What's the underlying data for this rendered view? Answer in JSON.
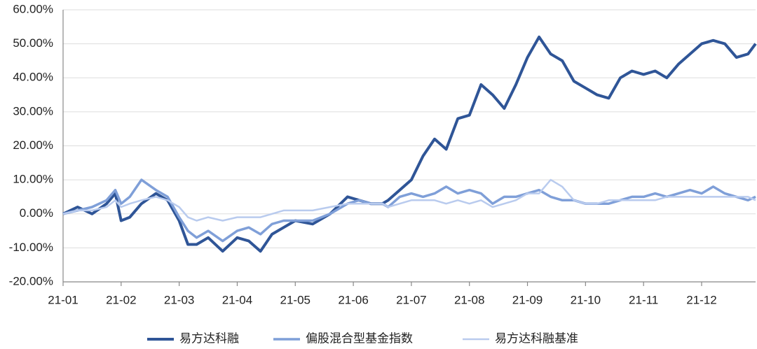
{
  "chart_data": {
    "type": "line",
    "x": [
      0,
      0.25,
      0.5,
      0.75,
      0.9,
      1.0,
      1.15,
      1.35,
      1.6,
      1.8,
      2.0,
      2.15,
      2.3,
      2.5,
      2.75,
      3.0,
      3.2,
      3.4,
      3.6,
      3.8,
      4.0,
      4.3,
      4.6,
      4.9,
      5.1,
      5.3,
      5.5,
      5.6,
      5.8,
      6.0,
      6.2,
      6.4,
      6.6,
      6.8,
      7.0,
      7.2,
      7.4,
      7.6,
      7.8,
      8.0,
      8.2,
      8.4,
      8.6,
      8.8,
      9.0,
      9.2,
      9.4,
      9.6,
      9.8,
      10.0,
      10.2,
      10.4,
      10.6,
      10.8,
      11.0,
      11.2,
      11.4,
      11.6,
      11.8,
      11.93
    ],
    "series": [
      {
        "name": "易方达科融",
        "color": "#2f5597",
        "width": 4,
        "values": [
          0,
          2,
          0,
          3,
          6,
          -2,
          -1,
          3,
          6,
          4,
          -2,
          -9,
          -9,
          -7,
          -11,
          -7,
          -8,
          -11,
          -6,
          -4,
          -2,
          -3,
          0,
          5,
          4,
          3,
          3,
          4,
          7,
          10,
          17,
          22,
          19,
          28,
          29,
          38,
          35,
          31,
          38,
          46,
          52,
          47,
          45,
          39,
          37,
          35,
          34,
          40,
          42,
          41,
          42,
          40,
          44,
          47,
          50,
          51,
          50,
          46,
          47,
          50
        ]
      },
      {
        "name": "偏股混合型基金指数",
        "color": "#7f9fd8",
        "width": 3.5,
        "values": [
          0,
          1,
          2,
          4,
          7,
          3,
          5,
          10,
          7,
          5,
          -1,
          -5,
          -7,
          -5,
          -8,
          -5,
          -4,
          -6,
          -3,
          -2,
          -2,
          -2,
          0,
          3,
          4,
          3,
          3,
          2,
          5,
          6,
          5,
          6,
          8,
          6,
          7,
          6,
          3,
          5,
          5,
          6,
          7,
          5,
          4,
          4,
          3,
          3,
          3,
          4,
          5,
          5,
          6,
          5,
          6,
          7,
          6,
          8,
          6,
          5,
          4,
          5
        ]
      },
      {
        "name": "易方达科融基准",
        "color": "#b9cbee",
        "width": 2.5,
        "values": [
          0,
          1,
          1,
          2,
          4,
          2,
          3,
          4,
          5,
          4,
          2,
          -1,
          -2,
          -1,
          -2,
          -1,
          -1,
          -1,
          0,
          1,
          1,
          1,
          2,
          3,
          3,
          3,
          3,
          2,
          3,
          4,
          4,
          4,
          3,
          4,
          3,
          4,
          2,
          3,
          4,
          6,
          6,
          10,
          8,
          4,
          3,
          3,
          4,
          4,
          4,
          4,
          4,
          5,
          5,
          5,
          5,
          5,
          5,
          5,
          5,
          4
        ]
      }
    ],
    "xlim": [
      0,
      11.93
    ],
    "xticks": [
      {
        "value": 0,
        "label": "21-01"
      },
      {
        "value": 1,
        "label": "21-02"
      },
      {
        "value": 2,
        "label": "21-03"
      },
      {
        "value": 3,
        "label": "21-04"
      },
      {
        "value": 4,
        "label": "21-05"
      },
      {
        "value": 5,
        "label": "21-06"
      },
      {
        "value": 6,
        "label": "21-07"
      },
      {
        "value": 7,
        "label": "21-08"
      },
      {
        "value": 8,
        "label": "21-09"
      },
      {
        "value": 9,
        "label": "21-10"
      },
      {
        "value": 10,
        "label": "21-11"
      },
      {
        "value": 11,
        "label": "21-12"
      }
    ],
    "ylim": [
      -20,
      60
    ],
    "yticks": [
      {
        "value": -20,
        "label": "-20.00%"
      },
      {
        "value": -10,
        "label": "-10.00%"
      },
      {
        "value": 0,
        "label": "0.00%"
      },
      {
        "value": 10,
        "label": "10.00%"
      },
      {
        "value": 20,
        "label": "20.00%"
      },
      {
        "value": 30,
        "label": "30.00%"
      },
      {
        "value": 40,
        "label": "40.00%"
      },
      {
        "value": 50,
        "label": "50.00%"
      },
      {
        "value": 60,
        "label": "60.00%"
      }
    ],
    "grid": true,
    "legend": "bottom"
  }
}
